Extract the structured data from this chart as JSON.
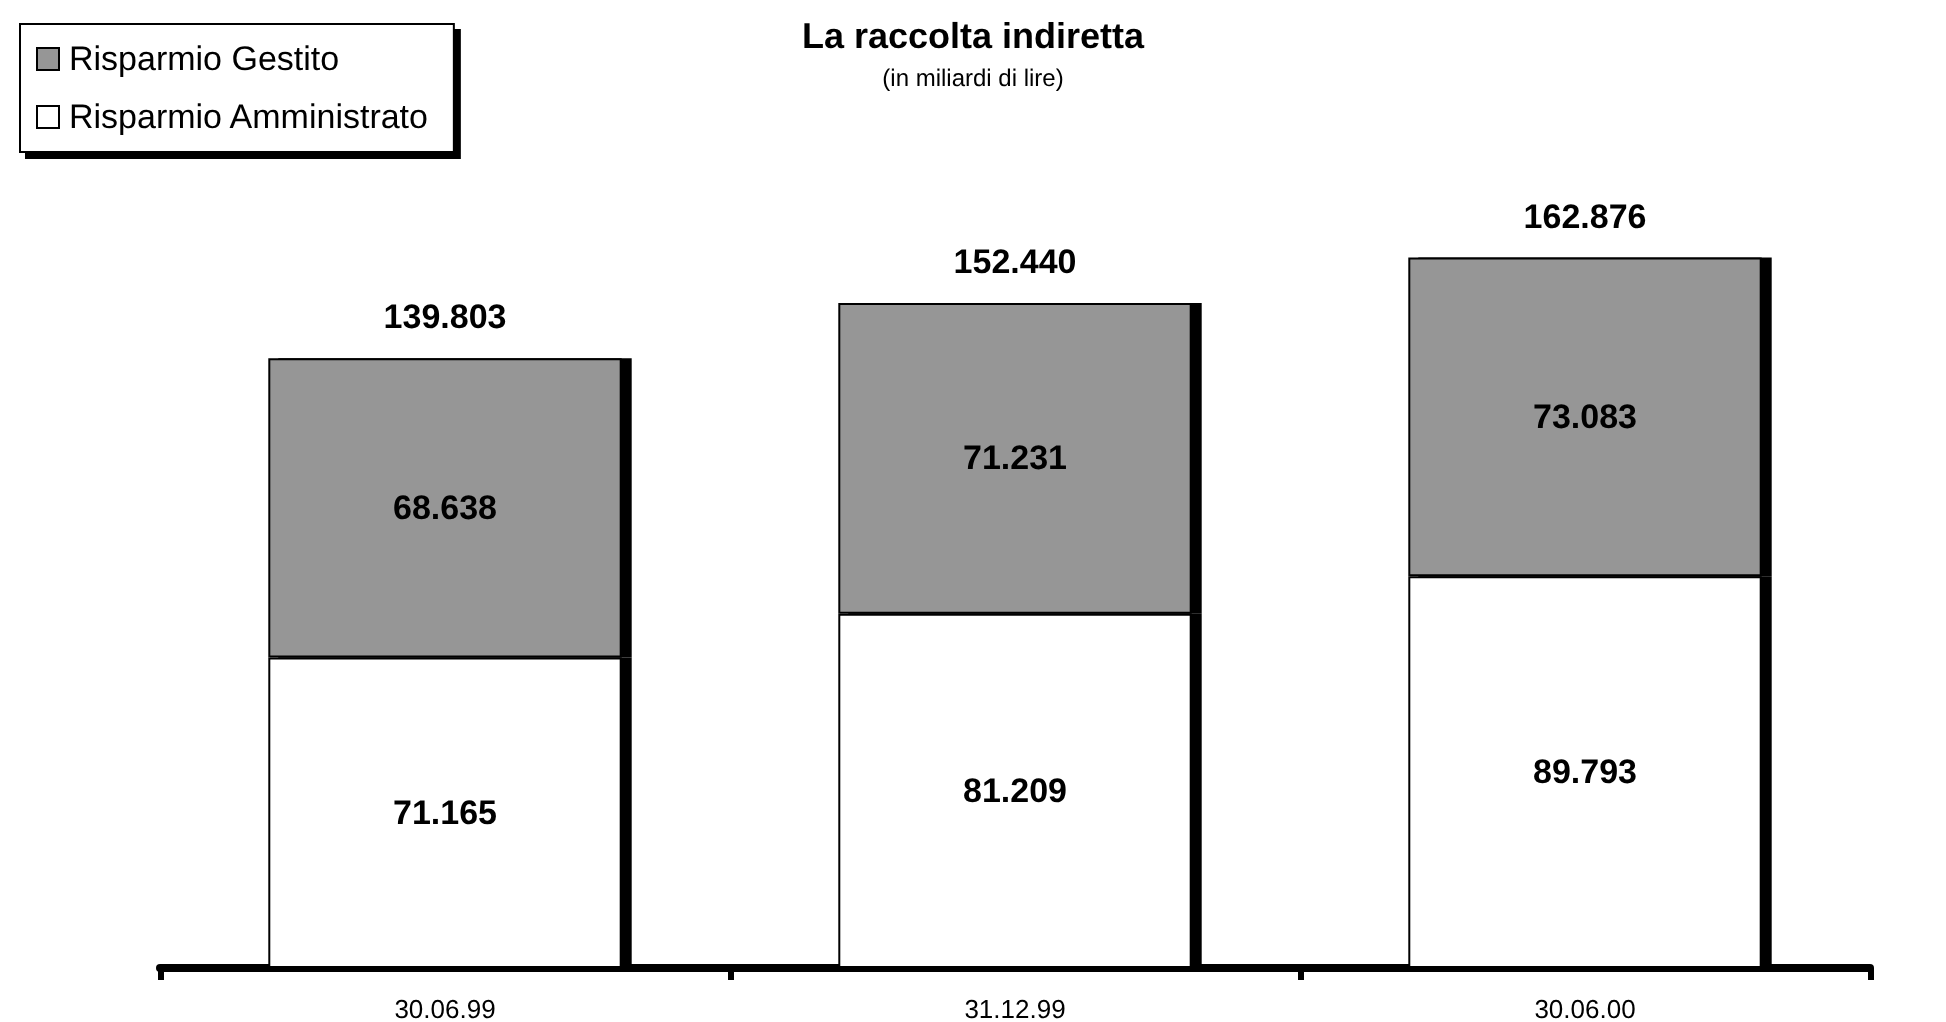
{
  "chart_data": {
    "type": "bar",
    "title": "La raccolta indiretta",
    "subtitle": "(in miliardi di lire)",
    "categories": [
      "30.06.99",
      "31.12.99",
      "30.06.00"
    ],
    "stacked": true,
    "legend": "top left",
    "tick_labels": "x",
    "series": [
      {
        "name": "Risparmio Amministrato",
        "color": "#ffffff",
        "values": [
          71165,
          81209,
          89793
        ],
        "value_labels": [
          "71.165",
          "81.209",
          "89.793"
        ]
      },
      {
        "name": "Risparmio Gestito",
        "color": "#969696",
        "values": [
          68638,
          71231,
          73083
        ],
        "value_labels": [
          "68.638",
          "71.231",
          "73.083"
        ]
      }
    ],
    "totals": [
      "139.803",
      "152.440",
      "162.876"
    ]
  }
}
